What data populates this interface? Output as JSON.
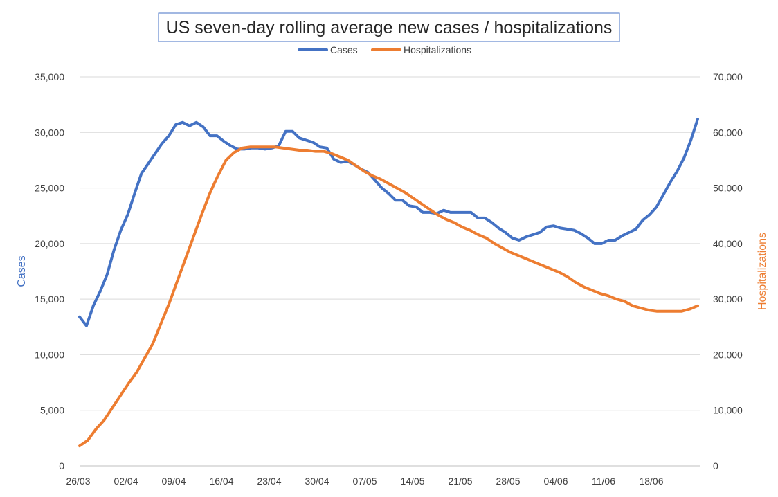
{
  "chart_data": {
    "type": "line",
    "title": "US seven-day rolling average new cases /  hospitalizations",
    "ylabel": "Cases",
    "y2label": "Hospitalizations",
    "xlabel": "",
    "x_tick_labels": [
      "26/03",
      "02/04",
      "09/04",
      "16/04",
      "23/04",
      "30/04",
      "07/05",
      "14/05",
      "21/05",
      "28/05",
      "04/06",
      "11/06",
      "18/06"
    ],
    "y_tick_labels": [
      "0",
      "5,000",
      "10,000",
      "15,000",
      "20,000",
      "25,000",
      "30,000",
      "35,000"
    ],
    "y2_tick_labels": [
      "0",
      "10,000",
      "20,000",
      "30,000",
      "40,000",
      "50,000",
      "60,000",
      "70,000"
    ],
    "ylim": [
      0,
      35000
    ],
    "y2lim": [
      0,
      70000
    ],
    "grid": true,
    "legend_position": "top",
    "series": [
      {
        "name": "Cases",
        "axis": "left",
        "color": "#4472c4",
        "values": [
          13400,
          12600,
          14400,
          15700,
          17200,
          19400,
          21200,
          22600,
          24500,
          26300,
          27200,
          28100,
          29000,
          29700,
          30700,
          30900,
          30600,
          30900,
          30500,
          29700,
          29700,
          29200,
          28800,
          28500,
          28500,
          28600,
          28600,
          28500,
          28600,
          28800,
          30100,
          30100,
          29500,
          29300,
          29100,
          28700,
          28600,
          27600,
          27300,
          27400,
          27100,
          26700,
          26400,
          25700,
          25000,
          24500,
          23900,
          23900,
          23400,
          23300,
          22800,
          22800,
          22700,
          23000,
          22800,
          22800,
          22800,
          22800,
          22300,
          22300,
          21900,
          21400,
          21000,
          20500,
          20300,
          20600,
          20800,
          21000,
          21500,
          21600,
          21400,
          21300,
          21200,
          20900,
          20500,
          20000,
          20000,
          20300,
          20300,
          20700,
          21000,
          21300,
          22100,
          22600,
          23300,
          24400,
          25500,
          26500,
          27700,
          29300,
          31200
        ]
      },
      {
        "name": "Hospitalizations",
        "axis": "right",
        "color": "#ed7d31",
        "values": [
          3600,
          4600,
          6600,
          8200,
          10400,
          12600,
          14800,
          16800,
          19400,
          22000,
          25600,
          29200,
          33200,
          37200,
          41200,
          45200,
          49000,
          52200,
          55000,
          56400,
          57200,
          57400,
          57400,
          57400,
          57400,
          57200,
          57000,
          56800,
          56800,
          56600,
          56600,
          56200,
          55600,
          55000,
          54000,
          53000,
          52200,
          51600,
          50800,
          50000,
          49200,
          48200,
          47200,
          46200,
          45200,
          44400,
          43800,
          43000,
          42400,
          41600,
          41000,
          40000,
          39200,
          38400,
          37800,
          37200,
          36600,
          36000,
          35400,
          34800,
          34000,
          33000,
          32200,
          31600,
          31000,
          30600,
          30000,
          29600,
          28800,
          28400,
          28000,
          27800,
          27800,
          27800,
          27800,
          28200,
          28800
        ]
      }
    ]
  }
}
